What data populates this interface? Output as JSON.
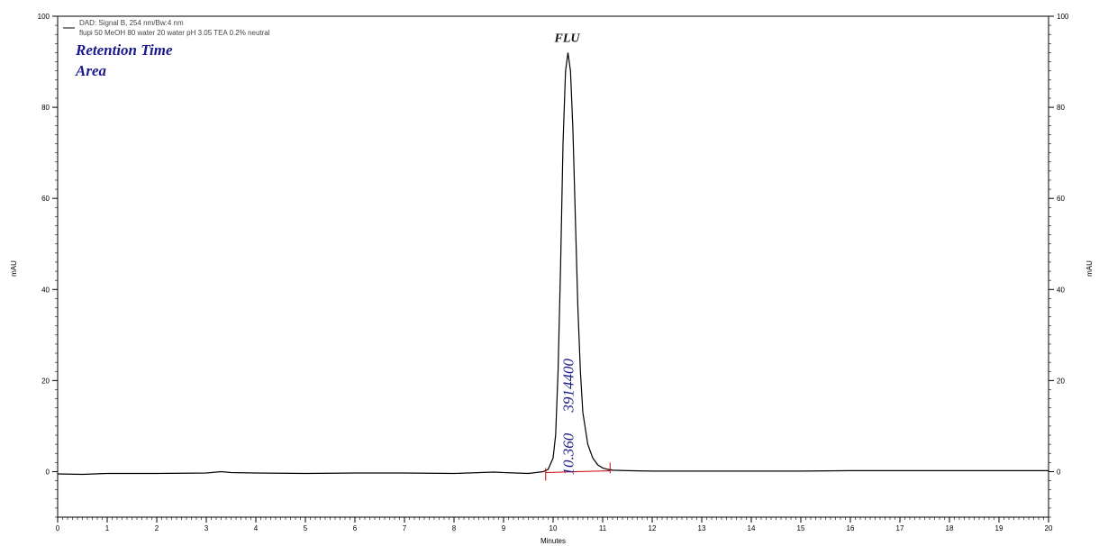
{
  "chart_data": {
    "type": "line",
    "xlabel": "Minutes",
    "ylabel_left": "mAU",
    "ylabel_right": "mAU",
    "xlim": [
      0,
      20
    ],
    "ylim": [
      -10,
      100
    ],
    "x_ticks": [
      0,
      1,
      2,
      3,
      4,
      5,
      6,
      7,
      8,
      9,
      10,
      11,
      12,
      13,
      14,
      15,
      16,
      17,
      18,
      19,
      20
    ],
    "y_ticks": [
      0,
      20,
      40,
      60,
      80,
      100
    ],
    "grid": false,
    "legend_position": "top-left",
    "legend": [
      "DAD: Signal B, 254 nm/Bw:4 nm",
      "flupi 50 MeOH 80 water 20 water pH 3.05 TEA 0.2% neutral"
    ],
    "overlay_labels": [
      "Retention Time",
      "Area"
    ],
    "series": [
      {
        "name": "DAD: Signal B, 254 nm/Bw:4 nm",
        "color": "#000000",
        "x": [
          0,
          0.5,
          1,
          2,
          3,
          3.3,
          3.5,
          4,
          5,
          6,
          7,
          8,
          8.8,
          9,
          9.5,
          9.8,
          9.9,
          10.0,
          10.05,
          10.1,
          10.15,
          10.2,
          10.25,
          10.3,
          10.35,
          10.4,
          10.45,
          10.5,
          10.55,
          10.6,
          10.7,
          10.8,
          10.9,
          11.0,
          11.1,
          11.2,
          11.5,
          12,
          13,
          14,
          15,
          16,
          17,
          18,
          19,
          20
        ],
        "y": [
          -0.5,
          -0.6,
          -0.4,
          -0.4,
          -0.3,
          0,
          -0.2,
          -0.3,
          -0.4,
          -0.3,
          -0.3,
          -0.4,
          -0.1,
          -0.2,
          -0.4,
          0,
          0.5,
          3,
          8,
          22,
          45,
          72,
          88,
          92,
          88,
          75,
          55,
          36,
          22,
          13,
          6,
          3,
          1.5,
          0.8,
          0.5,
          0.3,
          0.2,
          0.1,
          0.1,
          0.1,
          0.1,
          0.2,
          0.2,
          0.2,
          0.2,
          0.2
        ]
      }
    ],
    "peaks": [
      {
        "name": "FLU",
        "retention_time": "10.360",
        "area": "3914400",
        "apex_x": 10.3,
        "apex_y": 92,
        "baseline_start": 9.85,
        "baseline_end": 11.15,
        "baseline_color": "#cc0000",
        "annotation_color": "#1a1a8c"
      }
    ]
  }
}
